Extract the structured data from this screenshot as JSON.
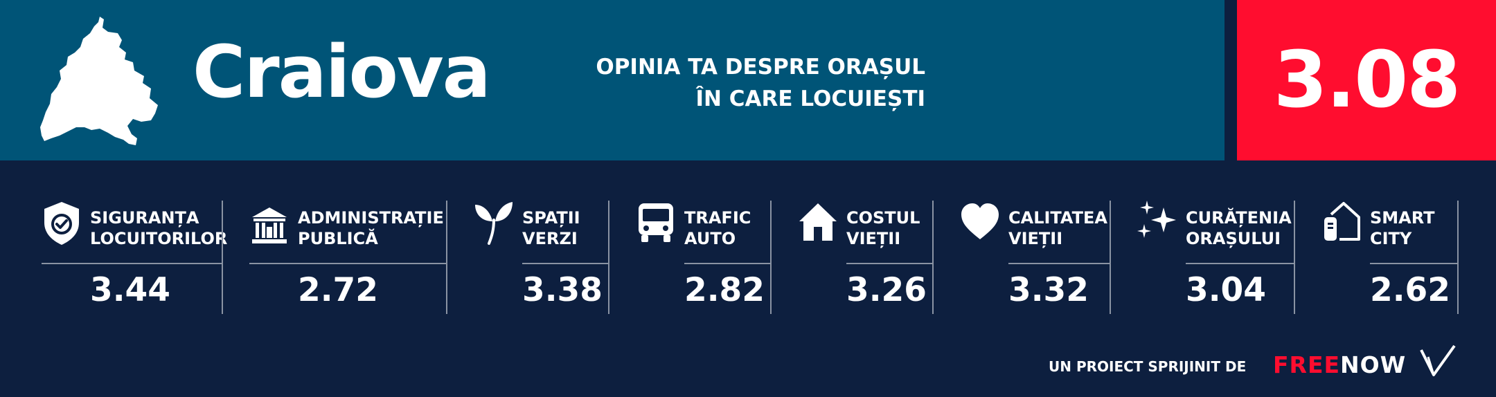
{
  "header": {
    "city": "Craiova",
    "tagline_line1": "OPINIA TA DESPRE ORAȘUL",
    "tagline_line2": "ÎN CARE LOCUIEȘTI",
    "overall_score": "3.08"
  },
  "categories": [
    {
      "icon": "shield-check-icon",
      "label_line1": "SIGURANȚA",
      "label_line2": "LOCUITORILOR",
      "value": "3.44"
    },
    {
      "icon": "government-building-icon",
      "label_line1": "ADMINISTRAȚIE",
      "label_line2": "PUBLICĂ",
      "value": "2.72"
    },
    {
      "icon": "sprout-icon",
      "label_line1": "SPAȚII",
      "label_line2": "VERZI",
      "value": "3.38"
    },
    {
      "icon": "bus-icon",
      "label_line1": "TRAFIC",
      "label_line2": "AUTO",
      "value": "2.82"
    },
    {
      "icon": "house-icon",
      "label_line1": "COSTUL",
      "label_line2": "VIEȚII",
      "value": "3.26"
    },
    {
      "icon": "heart-icon",
      "label_line1": "CALITATEA",
      "label_line2": "VIEȚII",
      "value": "3.32"
    },
    {
      "icon": "sparkles-icon",
      "label_line1": "CURĂȚENIA",
      "label_line2": "ORAȘULUI",
      "value": "3.04"
    },
    {
      "icon": "smart-home-icon",
      "label_line1": "SMART",
      "label_line2": "CITY",
      "value": "2.62"
    }
  ],
  "footer": {
    "sponsor_text": "UN PROIECT SPRIJINIT DE",
    "brand_part1": "FREE",
    "brand_part2": "NOW"
  },
  "colors": {
    "header_bg": "#005477",
    "body_bg": "#0d1f3f",
    "accent_red": "#ff0d2f"
  }
}
